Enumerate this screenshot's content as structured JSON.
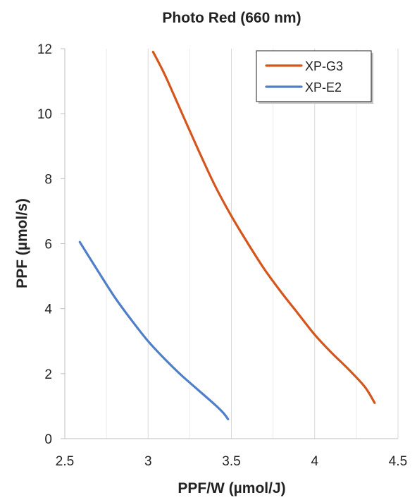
{
  "chart_data": {
    "type": "line",
    "title": "Photo Red (660 nm)",
    "xlabel": "PPF/W (µmol/J)",
    "ylabel": "PPF (µmol/s)",
    "xlim": [
      2.5,
      4.5
    ],
    "ylim": [
      0,
      12
    ],
    "xticks": [
      2.5,
      3,
      3.5,
      4,
      4.5
    ],
    "xtick_labels": [
      "2.5",
      "3",
      "3.5",
      "4",
      "4.5"
    ],
    "yticks": [
      0,
      2,
      4,
      6,
      8,
      10,
      12
    ],
    "ytick_labels": [
      "0",
      "2",
      "4",
      "6",
      "8",
      "10",
      "12"
    ],
    "grid": "vertical",
    "legend": "top-right",
    "series": [
      {
        "name": "XP-G3",
        "color": "#d4561d",
        "x": [
          3.03,
          3.1,
          3.2,
          3.3,
          3.4,
          3.5,
          3.6,
          3.7,
          3.8,
          3.9,
          4.0,
          4.1,
          4.2,
          4.3,
          4.36
        ],
        "y": [
          11.9,
          11.2,
          10.05,
          8.9,
          7.8,
          6.85,
          6.0,
          5.2,
          4.5,
          3.85,
          3.2,
          2.65,
          2.15,
          1.6,
          1.1
        ]
      },
      {
        "name": "XP-E2",
        "color": "#4f7fc8",
        "x": [
          2.59,
          2.7,
          2.8,
          2.9,
          3.0,
          3.1,
          3.2,
          3.3,
          3.4,
          3.45,
          3.48
        ],
        "y": [
          6.05,
          5.15,
          4.35,
          3.65,
          3.0,
          2.45,
          1.95,
          1.5,
          1.05,
          0.8,
          0.6
        ]
      }
    ]
  }
}
